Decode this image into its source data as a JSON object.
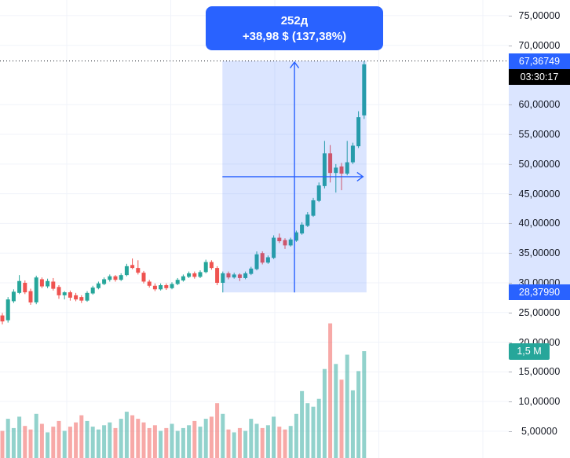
{
  "colors": {
    "up": "#26a69a",
    "down": "#ef5350",
    "vol_up": "rgba(38,166,154,0.5)",
    "vol_down": "rgba(239,83,80,0.5)",
    "accent_blue": "#2962ff",
    "region_fill": "rgba(41,98,255,0.17)",
    "grid": "#f0f3fa",
    "axis_text": "#131722",
    "tick_mark": "#b2b5be",
    "price_line": "#131722",
    "countdown_bg": "#000000",
    "volume_label_bg": "#26a69a"
  },
  "chart_data": {
    "type": "candlestick",
    "title": "",
    "xlabel": "",
    "ylabel": "price",
    "ylim": [
      0,
      78
    ],
    "grid": true,
    "candle_columns": [
      "open",
      "high",
      "low",
      "close",
      "volume_millions"
    ],
    "candles": [
      [
        24.5,
        24.9,
        23.0,
        23.5,
        0.38
      ],
      [
        23.7,
        27.6,
        23.3,
        27.2,
        0.55
      ],
      [
        26.9,
        28.9,
        26.6,
        28.5,
        0.42
      ],
      [
        28.3,
        31.3,
        28.1,
        30.3,
        0.58
      ],
      [
        30.0,
        30.4,
        28.1,
        28.4,
        0.45
      ],
      [
        28.6,
        29.0,
        26.3,
        26.7,
        0.4
      ],
      [
        26.7,
        31.2,
        26.4,
        30.9,
        0.62
      ],
      [
        30.6,
        30.9,
        29.1,
        29.4,
        0.48
      ],
      [
        29.4,
        30.7,
        29.1,
        30.3,
        0.36
      ],
      [
        30.2,
        30.8,
        28.7,
        29.0,
        0.44
      ],
      [
        29.3,
        29.6,
        27.3,
        27.9,
        0.52
      ],
      [
        27.9,
        28.6,
        27.2,
        28.4,
        0.38
      ],
      [
        28.4,
        28.7,
        27.0,
        27.5,
        0.44
      ],
      [
        27.9,
        28.3,
        26.9,
        27.2,
        0.5
      ],
      [
        27.6,
        27.9,
        26.6,
        27.0,
        0.6
      ],
      [
        27.0,
        28.6,
        26.8,
        28.3,
        0.52
      ],
      [
        28.2,
        29.5,
        28.0,
        29.2,
        0.44
      ],
      [
        29.1,
        30.2,
        28.9,
        29.9,
        0.4
      ],
      [
        29.8,
        30.9,
        29.6,
        30.6,
        0.46
      ],
      [
        30.5,
        31.4,
        30.2,
        31.1,
        0.5
      ],
      [
        31.1,
        31.3,
        30.2,
        30.5,
        0.42
      ],
      [
        30.5,
        31.6,
        30.3,
        31.3,
        0.55
      ],
      [
        31.3,
        33.2,
        31.1,
        32.8,
        0.65
      ],
      [
        33.0,
        34.1,
        32.3,
        32.5,
        0.6
      ],
      [
        32.5,
        33.8,
        31.4,
        31.7,
        0.55
      ],
      [
        31.7,
        32.0,
        29.9,
        30.2,
        0.5
      ],
      [
        30.2,
        30.5,
        29.2,
        29.5,
        0.42
      ],
      [
        29.5,
        29.9,
        28.6,
        28.9,
        0.46
      ],
      [
        28.9,
        29.9,
        28.7,
        29.6,
        0.38
      ],
      [
        29.6,
        29.9,
        28.8,
        29.1,
        0.42
      ],
      [
        29.1,
        30.1,
        28.9,
        29.8,
        0.48
      ],
      [
        29.8,
        30.8,
        29.6,
        30.5,
        0.38
      ],
      [
        30.4,
        31.4,
        30.2,
        31.1,
        0.42
      ],
      [
        31.0,
        31.9,
        30.8,
        31.6,
        0.46
      ],
      [
        31.6,
        31.9,
        30.7,
        31.0,
        0.52
      ],
      [
        31.0,
        32.1,
        30.8,
        31.8,
        0.44
      ],
      [
        31.8,
        33.9,
        31.6,
        33.5,
        0.55
      ],
      [
        33.5,
        33.8,
        32.2,
        32.5,
        0.58
      ],
      [
        32.5,
        32.8,
        29.6,
        30.0,
        0.77
      ],
      [
        30.0,
        31.9,
        28.38,
        31.6,
        0.62
      ],
      [
        31.6,
        31.9,
        30.6,
        30.9,
        0.4
      ],
      [
        30.9,
        31.7,
        30.7,
        31.4,
        0.36
      ],
      [
        31.4,
        31.6,
        30.3,
        30.8,
        0.42
      ],
      [
        30.8,
        31.9,
        30.6,
        31.6,
        0.38
      ],
      [
        31.5,
        32.7,
        31.3,
        32.4,
        0.55
      ],
      [
        32.3,
        35.3,
        32.1,
        34.8,
        0.48
      ],
      [
        35.0,
        35.3,
        33.1,
        33.4,
        0.42
      ],
      [
        33.4,
        34.6,
        33.2,
        34.3,
        0.46
      ],
      [
        34.2,
        38.0,
        34.0,
        37.6,
        0.58
      ],
      [
        37.6,
        38.3,
        36.7,
        37.0,
        0.44
      ],
      [
        37.2,
        37.5,
        35.7,
        36.3,
        0.4
      ],
      [
        36.3,
        37.6,
        36.1,
        37.3,
        0.45
      ],
      [
        37.1,
        38.8,
        36.9,
        38.5,
        0.62
      ],
      [
        38.3,
        40.2,
        38.1,
        39.8,
        0.94
      ],
      [
        39.6,
        41.9,
        39.4,
        41.5,
        0.77
      ],
      [
        41.3,
        44.3,
        41.1,
        43.9,
        0.72
      ],
      [
        43.8,
        46.9,
        43.6,
        46.4,
        0.83
      ],
      [
        46.3,
        53.9,
        45.9,
        51.8,
        1.25
      ],
      [
        51.8,
        53.2,
        46.9,
        48.5,
        1.89
      ],
      [
        48.5,
        50.0,
        45.2,
        49.4,
        1.32
      ],
      [
        49.6,
        50.2,
        45.6,
        48.4,
        1.1
      ],
      [
        48.4,
        53.9,
        48.1,
        50.3,
        1.45
      ],
      [
        50.3,
        53.6,
        50.0,
        53.1,
        0.95
      ],
      [
        53.0,
        58.9,
        52.7,
        57.9,
        1.22
      ],
      [
        58.2,
        67.37,
        57.6,
        66.8,
        1.5
      ]
    ],
    "price_axis": {
      "ticks": [
        {
          "price": 75,
          "label": "75,00000"
        },
        {
          "price": 70,
          "label": "70,00000"
        },
        {
          "price": 60,
          "label": "60,00000"
        },
        {
          "price": 55,
          "label": "55,00000"
        },
        {
          "price": 50,
          "label": "50,00000"
        },
        {
          "price": 45,
          "label": "45,00000"
        },
        {
          "price": 40,
          "label": "40,00000"
        },
        {
          "price": 35,
          "label": "35,00000"
        },
        {
          "price": 30,
          "label": "30,00000"
        },
        {
          "price": 25,
          "label": "25,00000"
        },
        {
          "price": 20,
          "label": "20,00000"
        },
        {
          "price": 15,
          "label": "15,00000"
        },
        {
          "price": 10,
          "label": "10,00000"
        },
        {
          "price": 5,
          "label": "5,00000"
        }
      ],
      "current_price": {
        "value": 67.36749,
        "label": "67,36749"
      },
      "countdown": "03:30:17",
      "range_start_price": {
        "value": 28.3799,
        "label": "28,37990"
      },
      "volume_label": {
        "value_millions": 1.5,
        "label": "1,5 M"
      }
    },
    "measure_tool": {
      "duration_label": "252д",
      "change_label": "+38,98 $ (137,38%)",
      "from_price": 28.3799,
      "to_price": 67.36749,
      "start_bar": 39,
      "end_bar": 64
    }
  }
}
